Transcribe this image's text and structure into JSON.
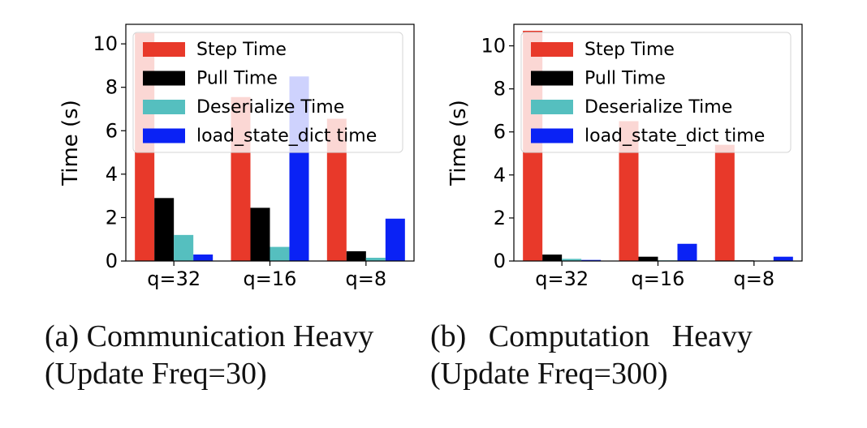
{
  "colors": {
    "step": "#e8392a",
    "pull": "#000000",
    "deserialize": "#55bfbf",
    "load": "#0a22f5"
  },
  "chart_data": [
    {
      "type": "bar",
      "ylabel": "Time (s)",
      "categories": [
        "q=32",
        "q=16",
        "q=8"
      ],
      "yticks": [
        "0",
        "2",
        "4",
        "6",
        "8",
        "10"
      ],
      "ylim": [
        0,
        10.9
      ],
      "legend_position": "top-right",
      "series": [
        {
          "name": "Step Time",
          "values": [
            10.5,
            7.55,
            6.55
          ]
        },
        {
          "name": "Pull Time",
          "values": [
            2.9,
            2.45,
            0.45
          ]
        },
        {
          "name": "Deserialize Time",
          "values": [
            1.2,
            0.65,
            0.15
          ]
        },
        {
          "name": "load_state_dict time",
          "values": [
            0.3,
            8.5,
            1.95
          ]
        }
      ]
    },
    {
      "type": "bar",
      "ylabel": "Time (s)",
      "categories": [
        "q=32",
        "q=16",
        "q=8"
      ],
      "yticks": [
        "0",
        "2",
        "4",
        "6",
        "8",
        "10"
      ],
      "ylim": [
        0,
        11.0
      ],
      "legend_position": "top-right",
      "series": [
        {
          "name": "Step Time",
          "values": [
            10.7,
            6.5,
            5.4
          ]
        },
        {
          "name": "Pull Time",
          "values": [
            0.3,
            0.2,
            0.03
          ]
        },
        {
          "name": "Deserialize Time",
          "values": [
            0.1,
            0.03,
            0.02
          ]
        },
        {
          "name": "load_state_dict time",
          "values": [
            0.05,
            0.8,
            0.2
          ]
        }
      ]
    }
  ],
  "captions": {
    "a": {
      "line1": "(a) Communication Heavy",
      "line2": "(Update Freq=30)"
    },
    "b": {
      "line1": "(b) Computation Heavy",
      "line2": "(Update Freq=300)"
    }
  }
}
